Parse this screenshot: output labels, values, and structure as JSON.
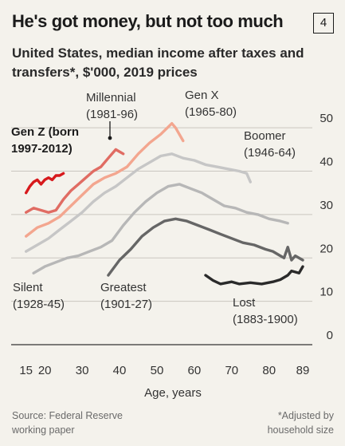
{
  "badge": "4",
  "chart_data": {
    "type": "line",
    "title": "He's got money, but not too much",
    "subtitle": "United States, median income after taxes and transfers*, $'000, 2019 prices",
    "xlabel": "Age, years",
    "ylabel": "",
    "xlim": [
      14,
      89
    ],
    "ylim": [
      0,
      55
    ],
    "x_ticks": [
      15,
      20,
      30,
      40,
      50,
      60,
      70,
      80,
      89
    ],
    "y_ticks": [
      0,
      10,
      20,
      30,
      40,
      50
    ],
    "grid": "horizontal",
    "series": [
      {
        "name": "Lost",
        "name_lines": [
          "Lost",
          "(1883-1900)"
        ],
        "color": "#2a2a2a",
        "x": [
          63,
          65,
          67,
          70,
          72,
          75,
          78,
          81,
          83,
          85,
          86,
          88,
          89
        ],
        "y": [
          16.0,
          14.8,
          14.0,
          14.5,
          14.0,
          14.3,
          14.0,
          14.5,
          15.0,
          16.0,
          17.0,
          16.5,
          18.0
        ]
      },
      {
        "name": "Greatest",
        "name_lines": [
          "Greatest",
          "(1901-27)"
        ],
        "color": "#666666",
        "x": [
          37,
          40,
          43,
          46,
          49,
          52,
          55,
          58,
          61,
          64,
          67,
          70,
          73,
          76,
          79,
          81,
          83,
          84,
          85,
          86,
          87,
          89
        ],
        "y": [
          16.0,
          19.5,
          22.0,
          25.0,
          27.0,
          28.5,
          29.0,
          28.5,
          27.5,
          26.5,
          25.5,
          24.5,
          23.5,
          23.0,
          22.0,
          21.5,
          20.5,
          20.0,
          22.5,
          19.5,
          20.5,
          19.5
        ]
      },
      {
        "name": "Silent",
        "name_lines": [
          "Silent",
          "(1928-45)"
        ],
        "color": "#b7b7b7",
        "x": [
          17,
          20,
          23,
          26,
          29,
          32,
          35,
          38,
          41,
          44,
          47,
          50,
          53,
          56,
          59,
          62,
          65,
          68,
          71,
          74,
          77,
          80,
          83,
          85
        ],
        "y": [
          16.5,
          18.0,
          19.0,
          20.0,
          20.5,
          21.5,
          22.5,
          24.0,
          27.5,
          30.5,
          33.0,
          35.0,
          36.5,
          37.0,
          36.0,
          35.0,
          33.5,
          32.0,
          31.5,
          30.5,
          30.0,
          29.0,
          28.5,
          28.0
        ]
      },
      {
        "name": "Boomer",
        "name_lines": [
          "Boomer",
          "(1946-64)"
        ],
        "color": "#c6c6c6",
        "x": [
          15,
          18,
          21,
          24,
          27,
          30,
          33,
          36,
          39,
          42,
          45,
          48,
          51,
          54,
          57,
          60,
          63,
          66,
          69,
          72,
          74,
          75
        ],
        "y": [
          21.5,
          23.0,
          24.5,
          26.5,
          28.5,
          30.5,
          33.0,
          35.0,
          36.5,
          38.5,
          40.5,
          42.0,
          43.5,
          44.0,
          43.0,
          42.5,
          41.5,
          41.0,
          40.5,
          40.0,
          39.5,
          37.5
        ]
      },
      {
        "name": "Gen X",
        "name_lines": [
          "Gen X",
          "(1965-80)"
        ],
        "color": "#f3a68f",
        "x": [
          15,
          18,
          21,
          24,
          27,
          30,
          33,
          36,
          39,
          42,
          45,
          48,
          51,
          54,
          55,
          57
        ],
        "y": [
          25.0,
          27.0,
          28.0,
          29.5,
          32.0,
          34.5,
          37.0,
          38.5,
          39.5,
          41.0,
          44.0,
          46.5,
          48.5,
          51.0,
          50.0,
          47.0
        ]
      },
      {
        "name": "Millennial",
        "name_lines": [
          "Millennial",
          "(1981-96)"
        ],
        "color": "#e06c63",
        "x": [
          15,
          17,
          19,
          21,
          23,
          25,
          27,
          29,
          31,
          33,
          35,
          37,
          38,
          39,
          40,
          41
        ],
        "y": [
          30.5,
          31.5,
          31.0,
          30.5,
          31.0,
          33.5,
          35.5,
          37.0,
          38.5,
          40.0,
          41.0,
          43.0,
          44.0,
          45.0,
          44.5,
          44.0
        ]
      },
      {
        "name": "Gen Z (born 1997-2012)",
        "name_lines": [
          "Gen Z (born",
          "1997-2012)"
        ],
        "color": "#d7191c",
        "x": [
          15,
          16,
          17,
          18,
          19,
          20,
          21,
          22,
          23,
          24,
          25
        ],
        "y": [
          35.0,
          36.5,
          37.5,
          38.0,
          37.0,
          38.0,
          38.5,
          38.0,
          39.0,
          39.0,
          39.5
        ]
      }
    ]
  },
  "source_lines": [
    "Source: Federal Reserve",
    "working paper"
  ],
  "note_lines": [
    "*Adjusted by",
    "household size"
  ]
}
